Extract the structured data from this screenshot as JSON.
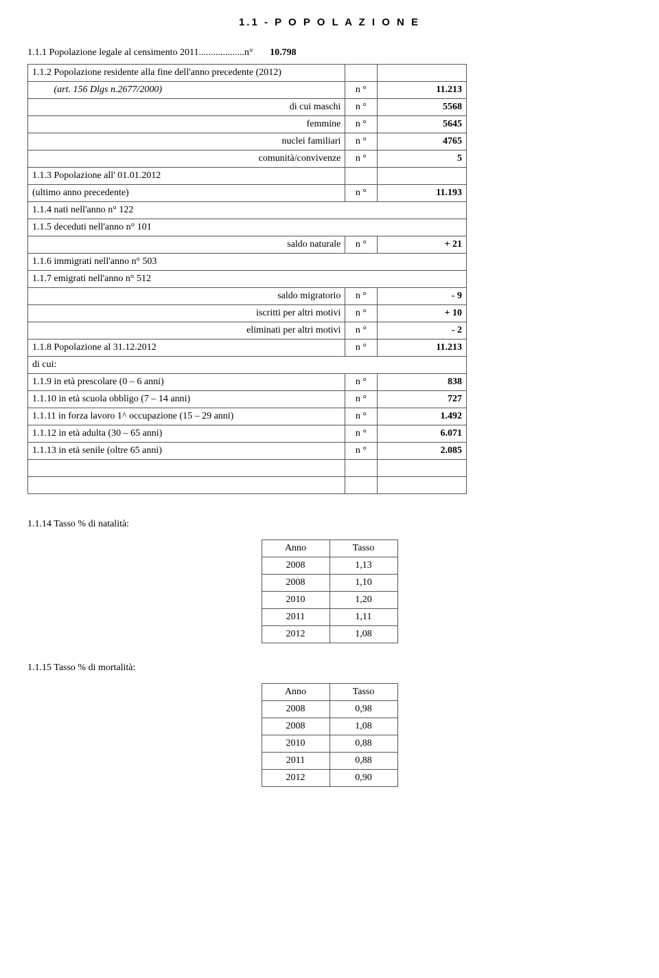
{
  "header": {
    "title": "1.1 - P O P O L A Z I O N E"
  },
  "intro": {
    "line1_label": "1.1.1  Popolazione legale al censimento 2011...................n°",
    "line1_value": "10.798"
  },
  "rows": [
    {
      "kind": "plain3",
      "label": "1.1.2  Popolazione residente alla fine dell'anno precedente (2012)",
      "sub": "",
      "value": ""
    },
    {
      "kind": "plain3",
      "label_html": "&nbsp;&nbsp;&nbsp;&nbsp;&nbsp;&nbsp;&nbsp;&nbsp;&nbsp;<i>(art. 156 Dlgs n.2677/2000)</i>",
      "sub": "n °",
      "value": "11.213"
    },
    {
      "kind": "right3",
      "label": "di cui maschi",
      "sub": "n °",
      "value": "5568"
    },
    {
      "kind": "right3",
      "label": "femmine",
      "sub": "n °",
      "value": "5645"
    },
    {
      "kind": "right3",
      "label": "nuclei familiari",
      "sub": "n °",
      "value": "4765"
    },
    {
      "kind": "right3",
      "label": "comunità/convivenze",
      "sub": "n °",
      "value": "5"
    },
    {
      "kind": "plain3",
      "label": "1.1.3  Popolazione all' 01.01.2012",
      "sub": "",
      "value": ""
    },
    {
      "kind": "plain3",
      "label": "          (ultimo anno precedente)",
      "sub": "n °",
      "value": "11.193"
    },
    {
      "kind": "span",
      "label": "1.1.4  nati nell'anno               n°  122"
    },
    {
      "kind": "span",
      "label": "1.1.5  deceduti nell'anno       n°  101"
    },
    {
      "kind": "right3",
      "label": "saldo naturale",
      "sub": "n °",
      "value": "+ 21"
    },
    {
      "kind": "span",
      "label": "1.1.6  immigrati nell'anno     n°  503"
    },
    {
      "kind": "span",
      "label": "1.1.7  emigrati nell'anno       n°  512"
    },
    {
      "kind": "right3",
      "label": "saldo migratorio",
      "sub": "n °",
      "value": "- 9"
    },
    {
      "kind": "right3",
      "label": "iscritti per altri motivi",
      "sub": "n °",
      "value": "+ 10"
    },
    {
      "kind": "right3",
      "label": "eliminati per altri motivi",
      "sub": "n °",
      "value": "- 2"
    },
    {
      "kind": "plain3",
      "label": "1.1.8   Popolazione al 31.12.2012",
      "sub": "n °",
      "value": "11.213"
    },
    {
      "kind": "span",
      "label": "di cui:"
    },
    {
      "kind": "plain3",
      "label": "1.1.9   in età prescolare (0 – 6 anni)",
      "sub": "n °",
      "value": "838"
    },
    {
      "kind": "plain3",
      "label": "1.1.10 in età scuola obbligo (7 – 14 anni)",
      "sub": "n °",
      "value": "727"
    },
    {
      "kind": "plain3",
      "label": "1.1.11 in forza lavoro 1^ occupazione (15 – 29 anni)",
      "sub": "n °",
      "value": "1.492"
    },
    {
      "kind": "plain3",
      "label": "1.1.12 in età adulta (30 – 65 anni)",
      "sub": "n °",
      "value": "6.071"
    },
    {
      "kind": "plain3",
      "label": "1.1.13 in età senile (oltre 65 anni)",
      "sub": "n °",
      "value": "2.085"
    },
    {
      "kind": "plain3",
      "label": "",
      "sub": "",
      "value": ""
    },
    {
      "kind": "plain3",
      "label": "",
      "sub": "",
      "value": ""
    }
  ],
  "tasso_natalita": {
    "title": "1.1.14 Tasso % di natalità:",
    "col_anno": "Anno",
    "col_tasso": "Tasso",
    "rows": [
      {
        "anno": "2008",
        "tasso": "1,13"
      },
      {
        "anno": "2008",
        "tasso": "1,10"
      },
      {
        "anno": "2010",
        "tasso": "1,20"
      },
      {
        "anno": "2011",
        "tasso": "1,11"
      },
      {
        "anno": "2012",
        "tasso": "1,08"
      }
    ]
  },
  "tasso_mortalita": {
    "title": "1.1.15 Tasso % di mortalità:",
    "col_anno": "Anno",
    "col_tasso": "Tasso",
    "rows": [
      {
        "anno": "2008",
        "tasso": "0,98"
      },
      {
        "anno": "2008",
        "tasso": "1,08"
      },
      {
        "anno": "2010",
        "tasso": "0,88"
      },
      {
        "anno": "2011",
        "tasso": "0,88"
      },
      {
        "anno": "2012",
        "tasso": "0,90"
      }
    ]
  }
}
